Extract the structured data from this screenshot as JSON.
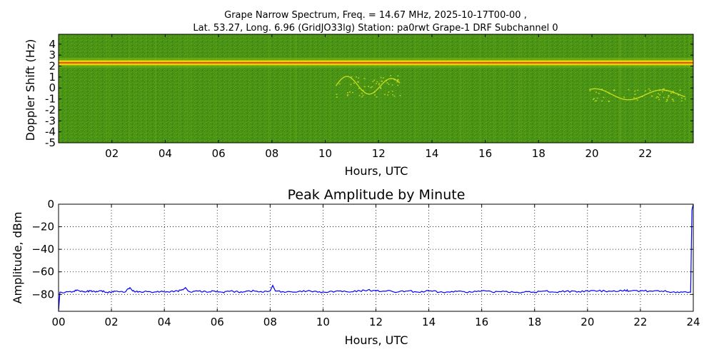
{
  "title_line1": "Grape Narrow Spectrum, Freq. = 14.67 MHz, 2025-10-17T00-00 ,",
  "title_line2": "Lat.  53.27, Long.   6.96 (GridJO33lg) Station: pa0rwt Grape-1 DRF Subchannel 0",
  "chart_data": [
    {
      "type": "heatmap",
      "title": "",
      "xlabel": "Hours, UTC",
      "ylabel": "Doppler Shift (Hz)",
      "xlim": [
        0,
        23.8
      ],
      "ylim": [
        -5,
        4.9
      ],
      "x_ticks": [
        "02",
        "04",
        "06",
        "08",
        "10",
        "12",
        "14",
        "16",
        "18",
        "20",
        "22"
      ],
      "x_tick_values": [
        2,
        4,
        6,
        8,
        10,
        12,
        14,
        16,
        18,
        20,
        22
      ],
      "y_ticks": [
        "4",
        "3",
        "2",
        "1",
        "0",
        "-1",
        "-2",
        "-3",
        "-4",
        "-5"
      ],
      "y_tick_values": [
        4,
        3,
        2,
        1,
        0,
        -1,
        -2,
        -3,
        -4,
        -5
      ],
      "carrier_doppler_hz": 2.3,
      "features": [
        {
          "hours": [
            10.4,
            12.8
          ],
          "doppler_hz": [
            -0.8,
            1.2
          ]
        },
        {
          "hours": [
            19.9,
            23.5
          ],
          "doppler_hz": [
            -1.2,
            0.0
          ]
        }
      ],
      "colors": {
        "background": "#3f8a12",
        "noise": "#7cb418",
        "carrier": "#ff2a00",
        "carrier_glow": "#f0e000",
        "trace": "#d8e820"
      }
    },
    {
      "type": "line",
      "title": "Peak Amplitude by Minute",
      "xlabel": "Hours, UTC",
      "ylabel": "Amplitude, dBm",
      "xlim": [
        0,
        24
      ],
      "ylim": [
        -95,
        0
      ],
      "grid": true,
      "x_ticks": [
        "00",
        "02",
        "04",
        "06",
        "08",
        "10",
        "12",
        "14",
        "16",
        "18",
        "20",
        "22",
        "24"
      ],
      "x_tick_values": [
        0,
        2,
        4,
        6,
        8,
        10,
        12,
        14,
        16,
        18,
        20,
        22,
        24
      ],
      "y_ticks": [
        "0",
        "−20",
        "−40",
        "−60",
        "−80"
      ],
      "y_tick_values": [
        0,
        -20,
        -40,
        -60,
        -80
      ],
      "color": "#0000ff",
      "series": [
        {
          "x": [
            0,
            0.05,
            0.1,
            0.5,
            0.7,
            0.8,
            1.0,
            1.2,
            1.4,
            1.6,
            1.8,
            2.0,
            2.2,
            2.5,
            2.7,
            2.8,
            3.0,
            3.3,
            3.6,
            3.9,
            4.2,
            4.5,
            4.7,
            4.8,
            4.9,
            5.0,
            5.3,
            5.6,
            5.9,
            6.2,
            6.5,
            6.8,
            7.1,
            7.4,
            7.7,
            8.0,
            8.1,
            8.2,
            8.3,
            8.6,
            9.0,
            9.4,
            9.8,
            10.2,
            10.6,
            11.0,
            11.4,
            11.7,
            12.0,
            12.4,
            12.8,
            13.2,
            13.6,
            14.0,
            14.4,
            14.8,
            15.2,
            15.6,
            16.0,
            16.4,
            16.8,
            17.2,
            17.6,
            18.0,
            18.4,
            18.8,
            19.2,
            19.6,
            20.0,
            20.4,
            20.8,
            21.2,
            21.4,
            21.6,
            22.0,
            22.4,
            22.8,
            23.2,
            23.6,
            23.9,
            23.95,
            24.0
          ],
          "y": [
            -95,
            -78,
            -78,
            -78,
            -76,
            -77,
            -78,
            -77,
            -78,
            -77,
            -78,
            -78,
            -77,
            -78,
            -74,
            -77,
            -78,
            -77,
            -78,
            -77,
            -78,
            -77,
            -76,
            -74,
            -77,
            -78,
            -77,
            -78,
            -77,
            -78,
            -77,
            -78,
            -77,
            -77,
            -78,
            -77,
            -72,
            -77,
            -77,
            -78,
            -78,
            -77,
            -78,
            -78,
            -77,
            -78,
            -77,
            -76,
            -77,
            -77,
            -78,
            -77,
            -78,
            -77,
            -78,
            -78,
            -77,
            -78,
            -77,
            -78,
            -77,
            -78,
            -78,
            -78,
            -77,
            -78,
            -77,
            -78,
            -77,
            -77,
            -77,
            -77,
            -76,
            -77,
            -77,
            -77,
            -77,
            -78,
            -78,
            -78,
            -5,
            0
          ]
        }
      ]
    }
  ]
}
